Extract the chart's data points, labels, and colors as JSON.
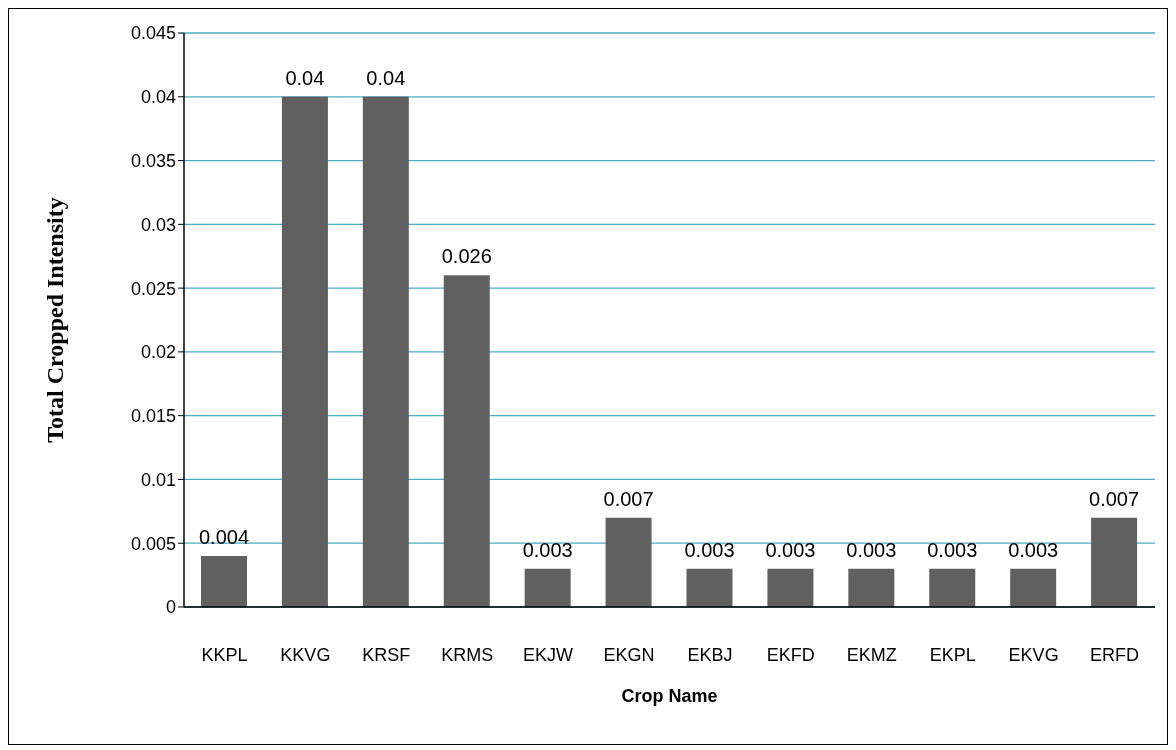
{
  "chart_data": {
    "type": "bar",
    "xlabel": "Crop Name",
    "ylabel": "Total Cropped Intensity",
    "categories": [
      "KKPL",
      "KKVG",
      "KRSF",
      "KRMS",
      "EKJW",
      "EKGN",
      "EKBJ",
      "EKFD",
      "EKMZ",
      "EKPL",
      "EKVG",
      "ERFD"
    ],
    "values": [
      0.004,
      0.04,
      0.04,
      0.026,
      0.003,
      0.007,
      0.003,
      0.003,
      0.003,
      0.003,
      0.003,
      0.007
    ],
    "color": "#606060",
    "ylim": [
      0,
      0.045
    ],
    "yticks": [
      0,
      0.005,
      0.01,
      0.015,
      0.02,
      0.025,
      0.03,
      0.035,
      0.04,
      0.045
    ],
    "grid": "y",
    "data_labels": true
  }
}
